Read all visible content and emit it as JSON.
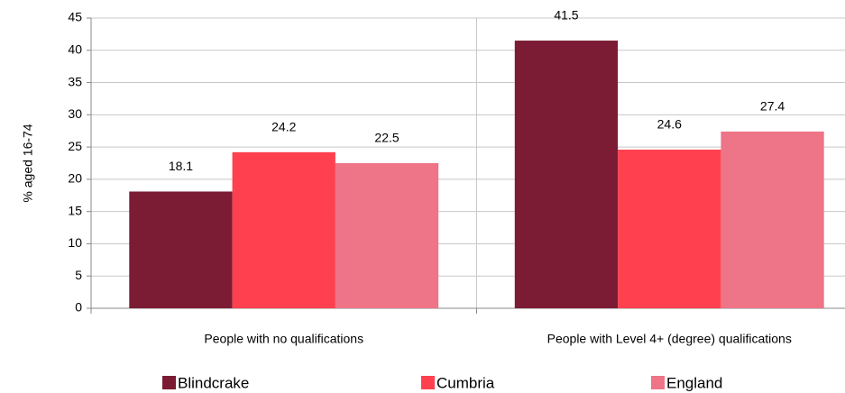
{
  "chart_data": {
    "type": "bar",
    "ylabel": "% aged 16-74",
    "categories": [
      "People with no qualifications",
      "People with Level 4+ (degree) qualifications"
    ],
    "series": [
      {
        "name": "Blindcrake",
        "color": "#7b1c34",
        "values": [
          18.1,
          41.5
        ]
      },
      {
        "name": "Cumbria",
        "color": "#ff414f",
        "values": [
          24.2,
          24.6
        ]
      },
      {
        "name": "England",
        "color": "#ee7487",
        "values": [
          22.5,
          27.4
        ]
      }
    ],
    "ylim": [
      0,
      45
    ],
    "yticks": [
      0,
      5,
      10,
      15,
      20,
      25,
      30,
      35,
      40,
      45
    ],
    "grid": true,
    "legend": "bottom"
  }
}
